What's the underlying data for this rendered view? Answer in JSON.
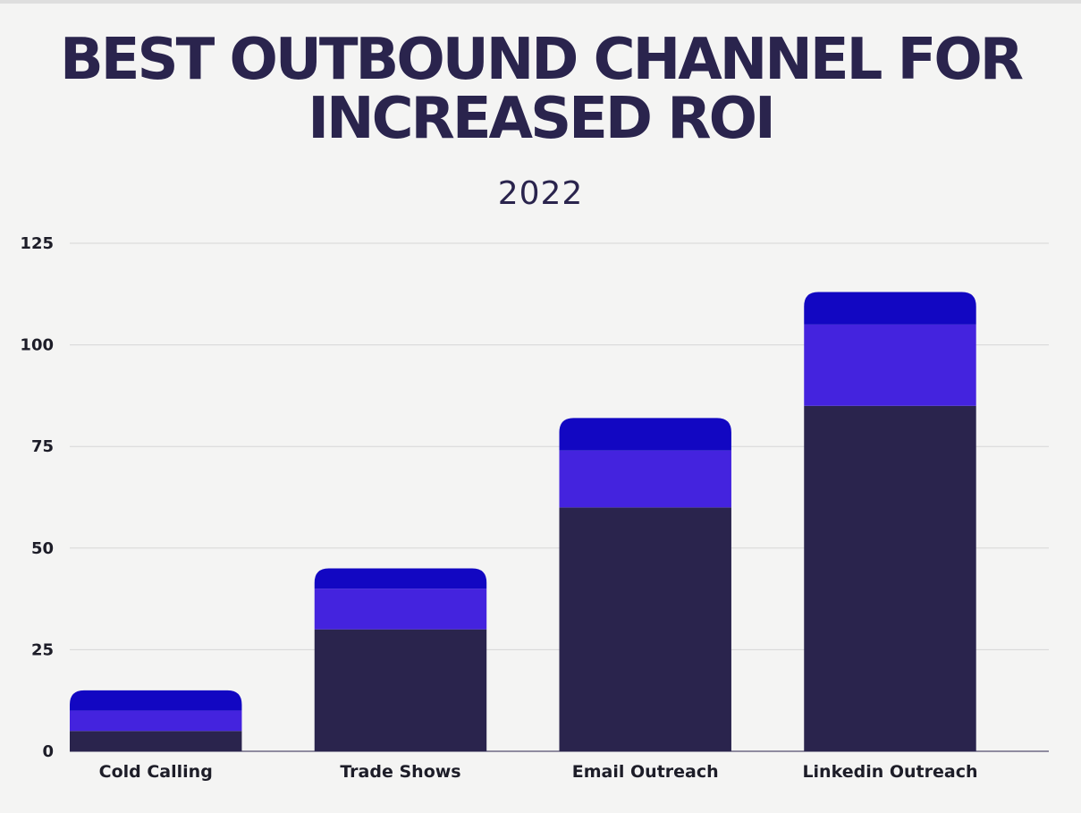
{
  "chart_data": {
    "type": "bar",
    "stacked": true,
    "title_lines": [
      "BEST OUTBOUND CHANNEL FOR",
      "INCREASED ROI"
    ],
    "subtitle": "2022",
    "categories": [
      "Cold Calling",
      "Trade Shows",
      "Email Outreach",
      "Linkedin Outreach"
    ],
    "series": [
      {
        "values": [
          5,
          30,
          60,
          85
        ],
        "color": "#2a244d"
      },
      {
        "values": [
          5,
          10,
          14,
          20
        ],
        "color": "#4423de"
      },
      {
        "values": [
          5,
          5,
          8,
          8
        ],
        "color": "#1207c2"
      }
    ],
    "ylim": [
      0,
      125
    ],
    "yticks": [
      0,
      25,
      50,
      75,
      100,
      125
    ],
    "grid": true,
    "legend": false
  }
}
